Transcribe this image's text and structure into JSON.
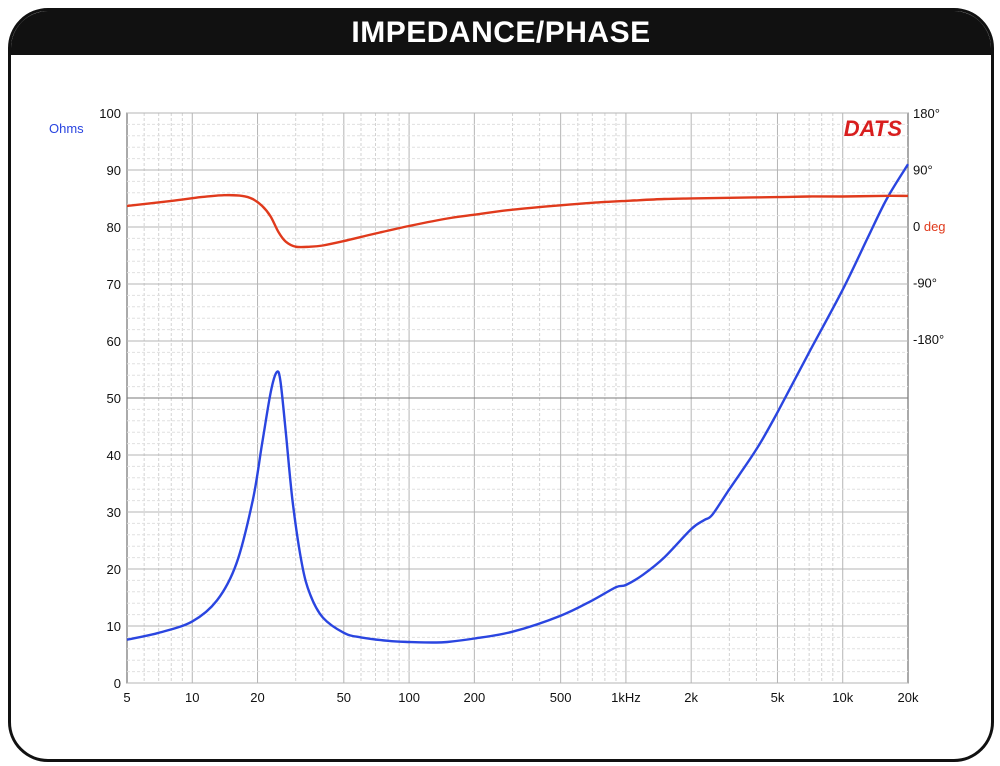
{
  "title": "IMPEDANCE/PHASE",
  "brand": "DATS",
  "chart_data": {
    "type": "line",
    "x_scale": "log",
    "xlim": [
      5,
      20000
    ],
    "x_ticks": [
      5,
      10,
      20,
      50,
      100,
      200,
      500,
      1000,
      2000,
      5000,
      10000,
      20000
    ],
    "x_tick_labels": [
      "5",
      "10",
      "20",
      "50",
      "100",
      "200",
      "500",
      "1kHz",
      "2k",
      "5k",
      "10k",
      "20k"
    ],
    "ylim": [
      0,
      100
    ],
    "y_ticks": [
      0,
      10,
      20,
      30,
      40,
      50,
      60,
      70,
      80,
      90,
      100
    ],
    "y_tick_labels": [
      "0",
      "10",
      "20",
      "30",
      "40",
      "50",
      "60",
      "70",
      "80",
      "90",
      "100"
    ],
    "ylabel": "Ohms",
    "y2_ticks": [
      {
        "value": 180,
        "label": "180°"
      },
      {
        "value": 90,
        "label": "90°"
      },
      {
        "value": 0,
        "label": "0"
      },
      {
        "value": -90,
        "label": "-90°"
      },
      {
        "value": -180,
        "label": "-180°"
      }
    ],
    "y2label": "deg",
    "grid": true,
    "series": [
      {
        "name": "Ohms",
        "axis": "left",
        "color": "#2a45e0",
        "x": [
          5,
          7,
          10,
          13,
          16,
          19,
          21,
          23,
          24.5,
          25.5,
          27,
          29,
          32,
          35,
          40,
          50,
          60,
          80,
          100,
          130,
          150,
          200,
          300,
          500,
          700,
          900,
          1000,
          1200,
          1500,
          2000,
          2300,
          2500,
          3000,
          4000,
          5000,
          7000,
          10000,
          13000,
          16000,
          20000
        ],
        "values": [
          7.6,
          8.8,
          10.8,
          14.5,
          21,
          32,
          42,
          51,
          54.5,
          53,
          44,
          32,
          21,
          15.5,
          11.5,
          8.8,
          8.0,
          7.4,
          7.2,
          7.1,
          7.2,
          7.8,
          9.0,
          11.8,
          14.5,
          16.8,
          17.2,
          19.0,
          22.0,
          27.0,
          28.6,
          29.5,
          34.0,
          41.0,
          47.5,
          58.0,
          69.0,
          78.0,
          85.0,
          91.0
        ]
      },
      {
        "name": "deg",
        "axis": "right",
        "color": "#e03a1c",
        "x": [
          5,
          8,
          11,
          14,
          17,
          19,
          21,
          23,
          25,
          27,
          30,
          35,
          40,
          50,
          70,
          100,
          150,
          200,
          300,
          500,
          700,
          1000,
          1500,
          2000,
          3000,
          5000,
          7000,
          10000,
          15000,
          20000
        ],
        "values": [
          32,
          40,
          46,
          49,
          48,
          43,
          32,
          15,
          -10,
          -25,
          -33,
          -33,
          -31,
          -24,
          -12,
          0,
          12,
          18,
          26,
          33,
          37,
          40,
          43,
          44,
          45,
          46,
          47,
          47,
          48,
          48
        ]
      }
    ]
  }
}
